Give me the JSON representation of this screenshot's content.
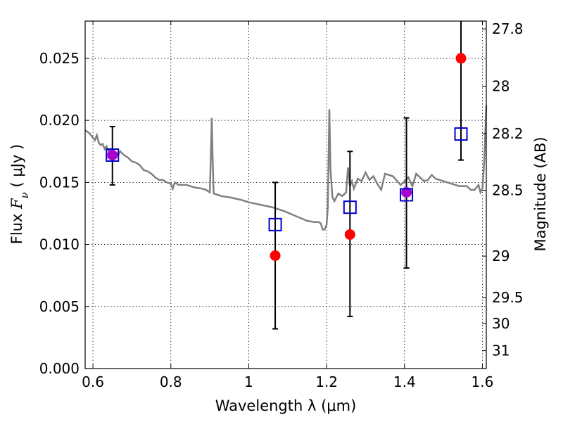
{
  "chart_data": {
    "type": "scatter",
    "xlabel": "Wavelength  λ (μm)",
    "ylabel": "Flux  Fν  ( μJy )",
    "ylabel_parts": {
      "prefix": "Flux  ",
      "symbol": "F",
      "subscript": "ν",
      "unit": "  ( μJy )"
    },
    "y2label": "Magnitude (AB)",
    "xlim": [
      0.58,
      1.61
    ],
    "ylim": [
      0.0,
      0.028
    ],
    "grid": true,
    "x_ticks": [
      {
        "value": 0.6,
        "label": "0.6"
      },
      {
        "value": 0.8,
        "label": "0.8"
      },
      {
        "value": 1.0,
        "label": "1"
      },
      {
        "value": 1.2,
        "label": "1.2"
      },
      {
        "value": 1.4,
        "label": "1.4"
      },
      {
        "value": 1.6,
        "label": "1.6"
      }
    ],
    "y_ticks": [
      {
        "value": 0.0,
        "label": "0.000"
      },
      {
        "value": 0.005,
        "label": "0.005"
      },
      {
        "value": 0.01,
        "label": "0.010"
      },
      {
        "value": 0.015,
        "label": "0.015"
      },
      {
        "value": 0.02,
        "label": "0.020"
      },
      {
        "value": 0.025,
        "label": "0.025"
      }
    ],
    "y2_ticks": [
      {
        "label": "27.8",
        "flux": 0.02737
      },
      {
        "label": "28",
        "flux": 0.02275
      },
      {
        "label": "28.2",
        "flux": 0.01893
      },
      {
        "label": "28.5",
        "flux": 0.01436
      },
      {
        "label": "29",
        "flux": 0.00906
      },
      {
        "label": "29.5",
        "flux": 0.00572
      },
      {
        "label": "30",
        "flux": 0.00363
      },
      {
        "label": "31",
        "flux": 0.00144
      }
    ],
    "model_sed": {
      "color": "#808080",
      "x": [
        0.58,
        0.59,
        0.6,
        0.605,
        0.61,
        0.615,
        0.62,
        0.625,
        0.63,
        0.635,
        0.64,
        0.645,
        0.65,
        0.655,
        0.66,
        0.665,
        0.67,
        0.68,
        0.69,
        0.7,
        0.71,
        0.72,
        0.73,
        0.74,
        0.75,
        0.76,
        0.77,
        0.78,
        0.79,
        0.8,
        0.805,
        0.81,
        0.815,
        0.82,
        0.84,
        0.86,
        0.88,
        0.89,
        0.9,
        0.9025,
        0.905,
        0.9075,
        0.91,
        0.93,
        0.95,
        0.98,
        1.0,
        1.03,
        1.06,
        1.09,
        1.12,
        1.15,
        1.17,
        1.18,
        1.185,
        1.19,
        1.195,
        1.2,
        1.203,
        1.205,
        1.207,
        1.21,
        1.215,
        1.22,
        1.23,
        1.24,
        1.25,
        1.255,
        1.26,
        1.265,
        1.27,
        1.28,
        1.29,
        1.3,
        1.31,
        1.32,
        1.33,
        1.34,
        1.35,
        1.37,
        1.39,
        1.41,
        1.42,
        1.43,
        1.44,
        1.45,
        1.46,
        1.47,
        1.48,
        1.5,
        1.52,
        1.54,
        1.56,
        1.57,
        1.58,
        1.585,
        1.59,
        1.595,
        1.6,
        1.605,
        1.61
      ],
      "y": [
        0.0192,
        0.019,
        0.0186,
        0.0184,
        0.0188,
        0.0182,
        0.018,
        0.0181,
        0.0177,
        0.0179,
        0.0175,
        0.0177,
        0.0176,
        0.0174,
        0.0174,
        0.0172,
        0.0175,
        0.0172,
        0.017,
        0.0167,
        0.0166,
        0.0164,
        0.016,
        0.0159,
        0.0157,
        0.0154,
        0.0152,
        0.0152,
        0.015,
        0.0149,
        0.0145,
        0.015,
        0.0149,
        0.0148,
        0.0148,
        0.0146,
        0.0145,
        0.0144,
        0.0142,
        0.0168,
        0.0202,
        0.0168,
        0.0141,
        0.0139,
        0.0138,
        0.0136,
        0.0134,
        0.0132,
        0.013,
        0.0127,
        0.0123,
        0.0119,
        0.0118,
        0.0118,
        0.0117,
        0.0112,
        0.0112,
        0.0116,
        0.013,
        0.017,
        0.0209,
        0.016,
        0.0138,
        0.0135,
        0.0141,
        0.0139,
        0.0142,
        0.0162,
        0.0147,
        0.0151,
        0.0145,
        0.0153,
        0.0151,
        0.0158,
        0.0152,
        0.0155,
        0.0149,
        0.0144,
        0.0157,
        0.0155,
        0.0148,
        0.0154,
        0.0147,
        0.0157,
        0.0154,
        0.0151,
        0.0152,
        0.0156,
        0.0153,
        0.0151,
        0.0149,
        0.0147,
        0.0147,
        0.0144,
        0.0144,
        0.0146,
        0.0148,
        0.0142,
        0.0145,
        0.0168,
        0.0212
      ]
    },
    "observed": {
      "color": "#ff0000",
      "x": [
        0.65,
        1.068,
        1.26,
        1.405,
        1.545
      ],
      "y": [
        0.0172,
        0.0091,
        0.0108,
        0.0142,
        0.025
      ],
      "yerr_low": [
        0.0148,
        0.0032,
        0.0042,
        0.0081,
        0.0168
      ],
      "yerr_high": [
        0.0195,
        0.015,
        0.0175,
        0.0202,
        0.028
      ]
    },
    "model_photometry": {
      "color": "#0000cc",
      "x": [
        0.65,
        1.068,
        1.26,
        1.405,
        1.545
      ],
      "y": [
        0.0172,
        0.0116,
        0.013,
        0.014,
        0.0189
      ]
    },
    "overlap_marker_color": "#aa00cc"
  }
}
